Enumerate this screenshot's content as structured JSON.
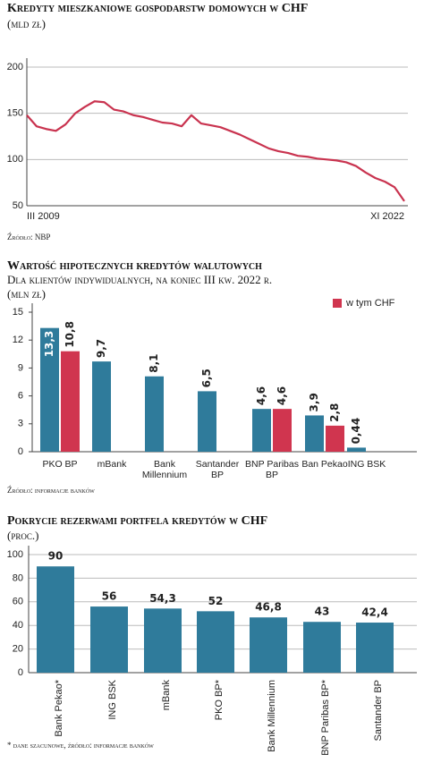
{
  "chart_data": [
    {
      "type": "line",
      "title": "Kredyty mieszkaniowe gospodarstw domowych w CHF",
      "subtitle": "(mld zł)",
      "categories": [
        "III 2009",
        null,
        null,
        null,
        null,
        null,
        null,
        null,
        null,
        null,
        null,
        null,
        null,
        null,
        null,
        null,
        null,
        null,
        null,
        null,
        null,
        null,
        null,
        null,
        null,
        null,
        null,
        null,
        null,
        null,
        null,
        null,
        null,
        null,
        null,
        null,
        null,
        null,
        null,
        "XI 2022"
      ],
      "values": [
        148,
        136,
        133,
        131,
        138,
        150,
        157,
        163,
        162,
        154,
        152,
        148,
        146,
        143,
        140,
        139,
        136,
        148,
        139,
        137,
        135,
        131,
        127,
        122,
        117,
        112,
        109,
        107,
        104,
        103,
        101,
        100,
        99,
        97,
        93,
        86,
        80,
        76,
        70,
        55
      ],
      "color": "#c9334f",
      "ylim": [
        50,
        200
      ],
      "yticks": [
        50,
        100,
        150,
        200
      ],
      "grid": true,
      "source": "Źródło: NBP"
    },
    {
      "type": "bar",
      "title": "Wartość hipotecznych kredytów walutowych",
      "subtitle": "Dla klientów indywidualnych, na koniec III kw. 2022 r.",
      "unit": "(mln zł)",
      "categories": [
        "PKO BP",
        "mBank",
        "Bank Millennium",
        "Santander BP",
        "BNP Paribas BP",
        "Ban Pekao",
        "ING BSK"
      ],
      "series": [
        {
          "color": "#2f7b9b",
          "values": [
            13.3,
            9.7,
            8.1,
            6.5,
            4.6,
            3.9,
            0.44
          ],
          "value_labels": [
            "13,3",
            "9,7",
            "8,1",
            "6,5",
            "4,6",
            "3,9",
            "0,44"
          ]
        },
        {
          "name": "w tym CHF",
          "color": "#d0354f",
          "values": [
            10.8,
            null,
            null,
            null,
            4.6,
            2.8,
            null
          ],
          "value_labels": [
            "10,8",
            null,
            null,
            null,
            "4,6",
            "2,8",
            null
          ]
        }
      ],
      "ylim": [
        0,
        15
      ],
      "yticks": [
        0,
        3,
        6,
        9,
        12,
        15
      ],
      "grid": false,
      "legend": "top-right",
      "source": "Źródło: informacje banków"
    },
    {
      "type": "bar",
      "title": "Pokrycie rezerwami portfela kredytów w CHF",
      "subtitle": "(proc.)",
      "categories": [
        "Bank Pekao*",
        "ING BSK",
        "mBank",
        "PKO BP*",
        "Bank Millennium",
        "BNP Paribas BP*",
        "Santander BP"
      ],
      "values": [
        90,
        56,
        54.3,
        52,
        46.8,
        43,
        42.4
      ],
      "value_labels": [
        "90",
        "56",
        "54,3",
        "52",
        "46,8",
        "43",
        "42,4"
      ],
      "color": "#2f7b9b",
      "ylim": [
        0,
        100
      ],
      "yticks": [
        0,
        20,
        40,
        60,
        80,
        100
      ],
      "grid": true,
      "note": "* dane szacunowe, źródło: informacje banków"
    }
  ]
}
